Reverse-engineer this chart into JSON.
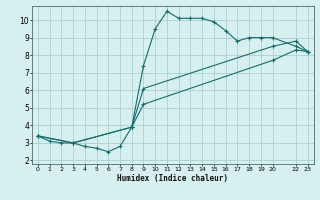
{
  "title": "",
  "xlabel": "Humidex (Indice chaleur)",
  "bg_color": "#d6efef",
  "line_color": "#1a6b6b",
  "grid_color": "#aacfcf",
  "xlim": [
    -0.5,
    23.5
  ],
  "ylim": [
    1.8,
    10.8
  ],
  "xticks": [
    0,
    1,
    2,
    3,
    4,
    5,
    6,
    7,
    8,
    9,
    10,
    11,
    12,
    13,
    14,
    15,
    16,
    17,
    18,
    19,
    20,
    22,
    23
  ],
  "yticks": [
    2,
    3,
    4,
    5,
    6,
    7,
    8,
    9,
    10
  ],
  "line1_x": [
    0,
    1,
    2,
    3,
    4,
    5,
    6,
    7,
    8,
    9,
    10,
    11,
    12,
    13,
    14,
    15,
    16,
    17,
    18,
    19,
    20,
    22,
    23
  ],
  "line1_y": [
    3.4,
    3.1,
    3.0,
    3.0,
    2.8,
    2.7,
    2.5,
    2.8,
    3.9,
    7.4,
    9.5,
    10.5,
    10.1,
    10.1,
    10.1,
    9.9,
    9.4,
    8.8,
    9.0,
    9.0,
    9.0,
    8.5,
    8.2
  ],
  "line2_x": [
    0,
    3,
    8,
    9,
    20,
    22,
    23
  ],
  "line2_y": [
    3.4,
    3.0,
    3.9,
    5.2,
    7.7,
    8.3,
    8.2
  ],
  "line3_x": [
    0,
    3,
    8,
    9,
    20,
    22,
    23
  ],
  "line3_y": [
    3.4,
    3.0,
    3.9,
    6.1,
    8.5,
    8.8,
    8.2
  ]
}
